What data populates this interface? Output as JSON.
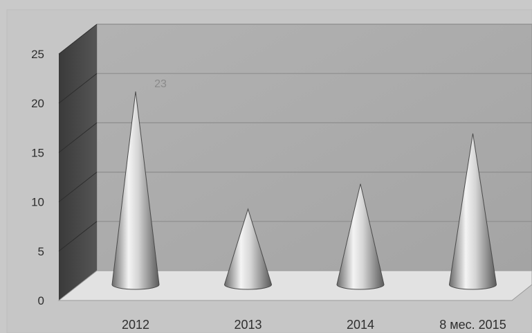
{
  "chart_data": {
    "type": "bar",
    "style": "3d-cone",
    "title": "",
    "xlabel": "",
    "ylabel": "",
    "categories": [
      "2012",
      "2013",
      "2014",
      "8 мес. 2015"
    ],
    "values": [
      23,
      9,
      12,
      18
    ],
    "data_labels": [
      "23",
      "",
      "",
      ""
    ],
    "ylim": [
      0,
      25
    ],
    "yticks": [
      "0",
      "5",
      "10",
      "15",
      "20",
      "25"
    ],
    "grid": true,
    "legend": "none"
  }
}
